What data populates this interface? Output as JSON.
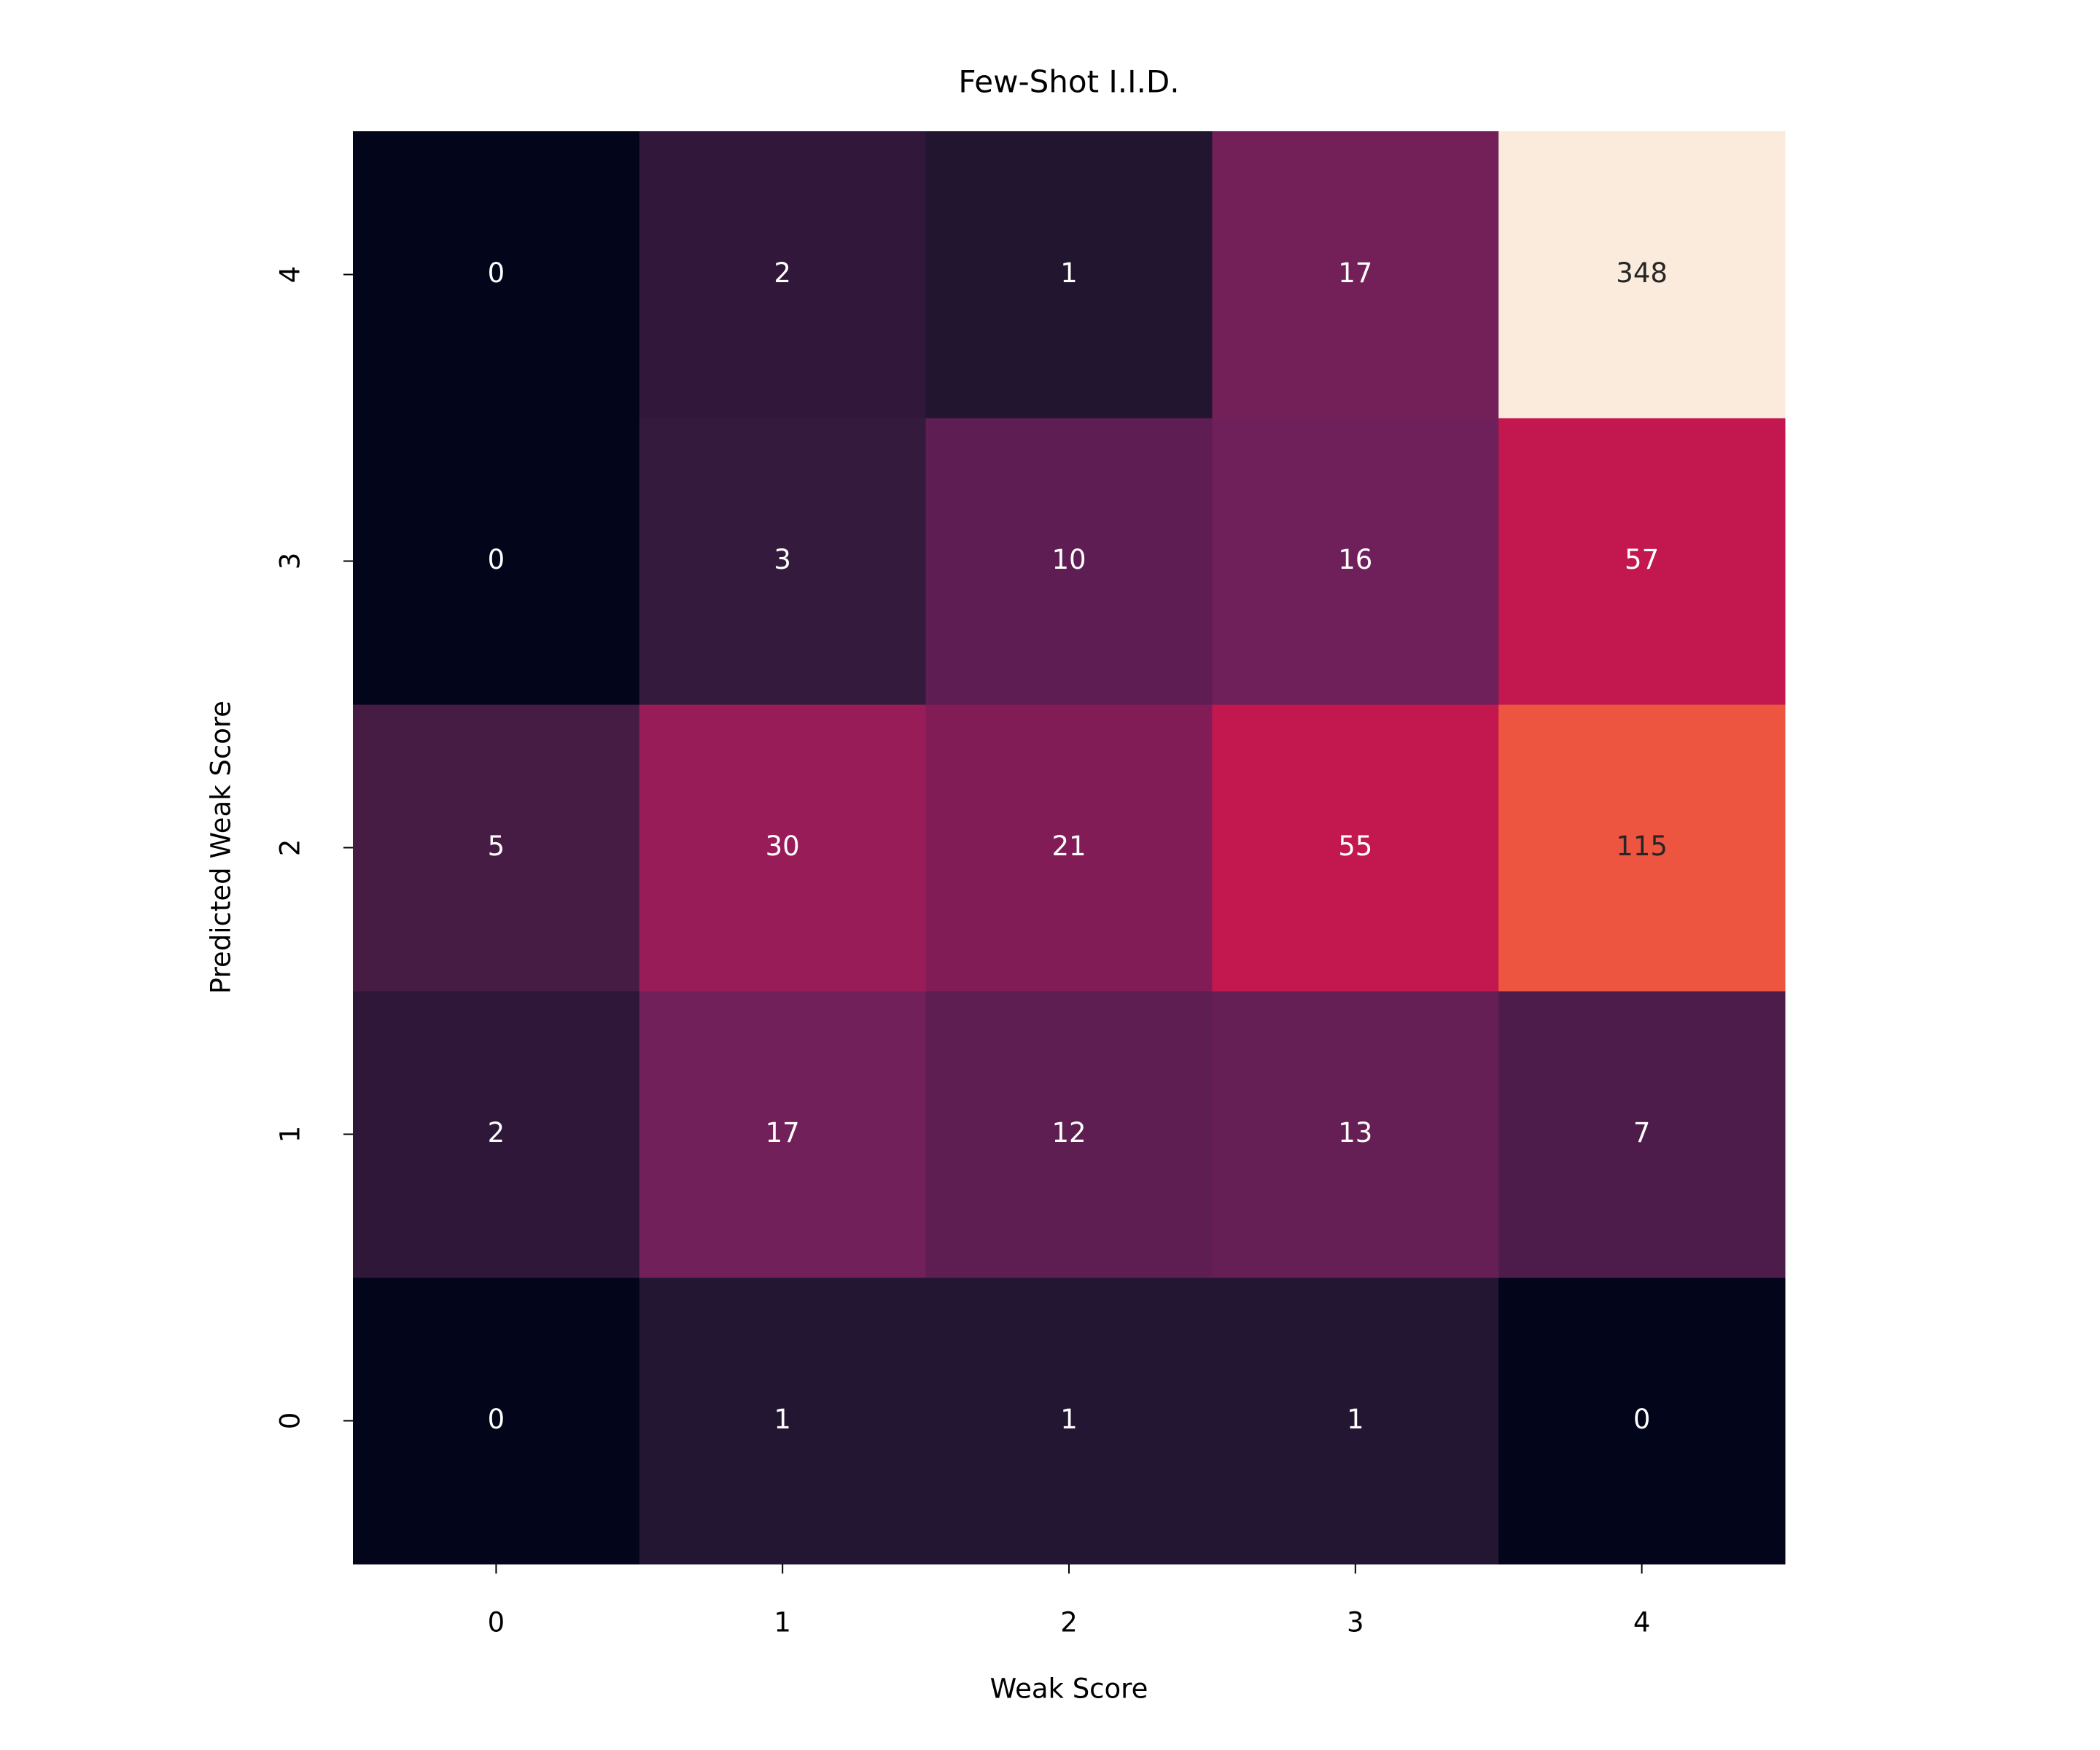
{
  "chart_data": {
    "type": "heatmap",
    "title": "Few-Shot I.I.D.",
    "x_label": "Weak Score",
    "y_label": "Predicted Weak Score",
    "x_categories": [
      "0",
      "1",
      "2",
      "3",
      "4"
    ],
    "y_categories": [
      "0",
      "1",
      "2",
      "3",
      "4"
    ],
    "z": [
      [
        0,
        1,
        1,
        1,
        0
      ],
      [
        2,
        17,
        12,
        13,
        7
      ],
      [
        5,
        30,
        21,
        55,
        115
      ],
      [
        0,
        3,
        10,
        16,
        57
      ],
      [
        0,
        2,
        1,
        17,
        348
      ]
    ],
    "colors": [
      [
        "#03051a",
        "#231632",
        "#231632",
        "#231632",
        "#03051a"
      ],
      [
        "#2e1739",
        "#72205a",
        "#5f1e52",
        "#661f54",
        "#4e1c4a"
      ],
      [
        "#461c44",
        "#981c58",
        "#811c57",
        "#c2184f",
        "#ee5540"
      ],
      [
        "#03051a",
        "#341a3c",
        "#5e1e53",
        "#6f1f59",
        "#c2184f"
      ],
      [
        "#03051a",
        "#311739",
        "#221530",
        "#742058",
        "#faebdd"
      ]
    ],
    "colormap": "rocket"
  }
}
